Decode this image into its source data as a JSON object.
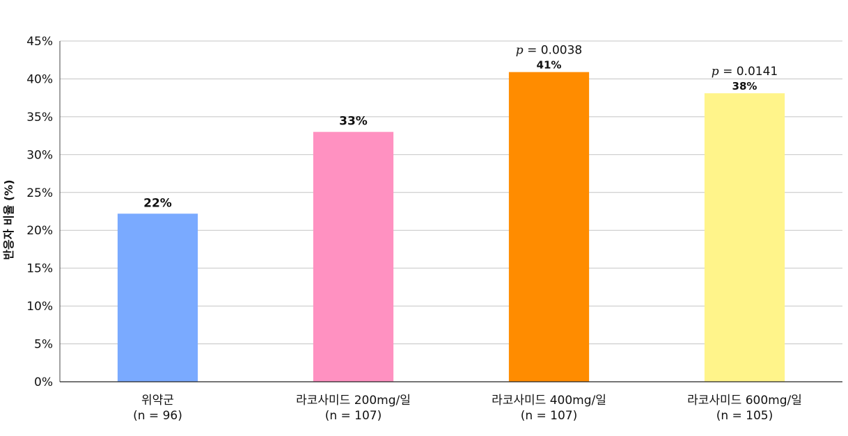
{
  "chart_data": {
    "type": "bar",
    "ylabel": "반응자 비율 (%)",
    "ylim": [
      0,
      45
    ],
    "yticks": [
      "0%",
      "5%",
      "10%",
      "15%",
      "20%",
      "25%",
      "30%",
      "35%",
      "40%",
      "45%"
    ],
    "grid": true,
    "categories": [
      {
        "name": "위약군",
        "n": "(n = 96)"
      },
      {
        "name": "라코사미드 200mg/일",
        "n": "(n = 107)"
      },
      {
        "name": "라코사미드 400mg/일",
        "n": "(n = 107)"
      },
      {
        "name": "라코사미드 600mg/일",
        "n": "(n = 105)"
      }
    ],
    "values": [
      22.2,
      33,
      40.9,
      38.1
    ],
    "data_labels": [
      "22%",
      "33%",
      "41%",
      "38%"
    ],
    "p_values": [
      null,
      null,
      "0.0038",
      "0.0141"
    ],
    "colors": [
      "#7aaaff",
      "#ff91c1",
      "#ff8c00",
      "#fff48a"
    ]
  }
}
